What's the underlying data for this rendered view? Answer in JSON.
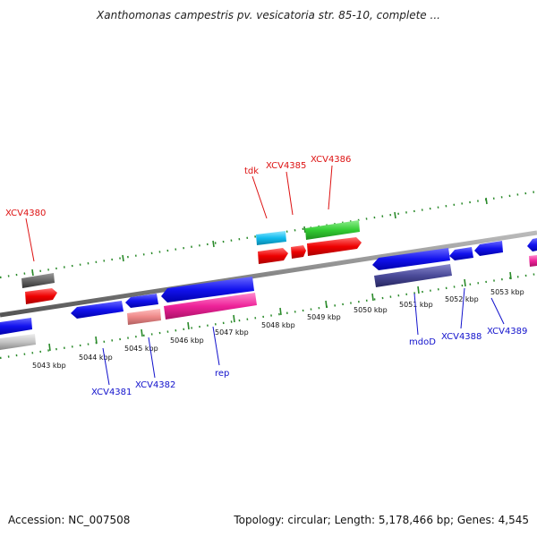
{
  "title": "Xanthomonas campestris pv. vesicatoria str. 85-10, complete ...",
  "footer": {
    "accession": "Accession: NC_007508",
    "summary": "Topology: circular; Length: 5,178,466 bp; Genes: 4,545"
  },
  "colors": {
    "forward_label": "#dd1111",
    "reverse_label": "#1111cc",
    "backbone": "#888888",
    "ticks": "#228822"
  },
  "ticks": [
    "5043 kbp",
    "5044 kbp",
    "5045 kbp",
    "5046 kbp",
    "5047 kbp",
    "5048 kbp",
    "5049 kbp",
    "5050 kbp",
    "5051 kbp",
    "5052 kbp",
    "5053 kbp"
  ],
  "forward_labels": [
    "XCV4380",
    "tdk",
    "XCV4385",
    "XCV4386"
  ],
  "reverse_labels": [
    "XCV4381",
    "XCV4382",
    "rep",
    "mdoD",
    "XCV4388",
    "XCV4389"
  ]
}
